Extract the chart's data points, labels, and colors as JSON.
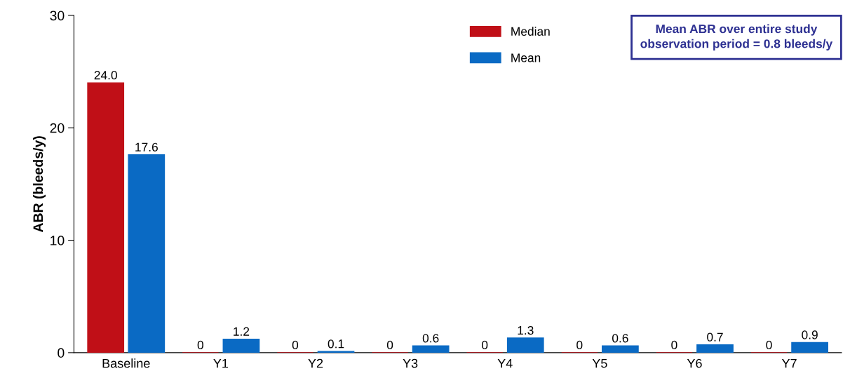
{
  "chart_data": {
    "type": "bar",
    "ylabel": "ABR (bleeds/y)",
    "categories": [
      "Baseline",
      "Y1",
      "Y2",
      "Y3",
      "Y4",
      "Y5",
      "Y6",
      "Y7"
    ],
    "series": [
      {
        "name": "Median",
        "color": "#c00f17",
        "values": [
          24.0,
          0,
          0,
          0,
          0,
          0,
          0,
          0
        ],
        "value_labels": [
          "24.0",
          "0",
          "0",
          "0",
          "0",
          "0",
          "0",
          "0"
        ]
      },
      {
        "name": "Mean",
        "color": "#0a6ac4",
        "values": [
          17.6,
          1.2,
          0.1,
          0.6,
          1.3,
          0.6,
          0.7,
          0.9
        ],
        "value_labels": [
          "17.6",
          "1.2",
          "0.1",
          "0.6",
          "1.3",
          "0.6",
          "0.7",
          "0.9"
        ]
      }
    ],
    "ylim": [
      0,
      30
    ],
    "yticks": [
      0,
      10,
      20,
      30
    ],
    "grid": false,
    "legend": "top right",
    "annotations": [
      "Mean ABR over entire study\nobservation period = 0.8 bleeds/y"
    ]
  }
}
